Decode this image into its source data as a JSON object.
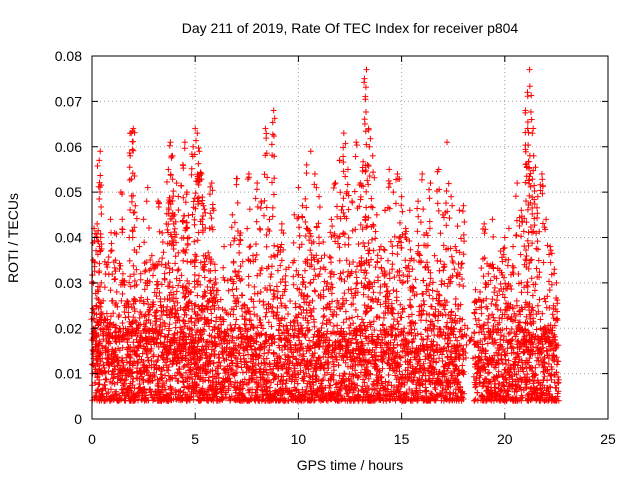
{
  "chart_data": {
    "type": "scatter",
    "title": "Day 211 of 2019, Rate Of TEC Index for receiver p804",
    "xlabel": "GPS time / hours",
    "ylabel": "ROTI / TECUs",
    "xlim": [
      0,
      25
    ],
    "ylim": [
      0,
      0.08
    ],
    "xticks": [
      0,
      5,
      10,
      15,
      20,
      25
    ],
    "xtick_labels": [
      "0",
      "5",
      "10",
      "15",
      "20",
      "25"
    ],
    "yticks": [
      0,
      0.01,
      0.02,
      0.03,
      0.04,
      0.05,
      0.06,
      0.07,
      0.08
    ],
    "ytick_labels": [
      "0",
      "0.01",
      "0.02",
      "0.03",
      "0.04",
      "0.05",
      "0.06",
      "0.07",
      "0.08"
    ],
    "grid": true,
    "marker": "plus",
    "color": "#ff0000",
    "series": [
      {
        "name": "ROTI",
        "points": [
          [
            0.0,
            0.012
          ],
          [
            0.05,
            0.035
          ],
          [
            0.1,
            0.042
          ],
          [
            0.15,
            0.008
          ],
          [
            0.2,
            0.025
          ],
          [
            0.25,
            0.043
          ],
          [
            0.3,
            0.015
          ],
          [
            0.35,
            0.057
          ],
          [
            0.4,
            0.059
          ],
          [
            0.45,
            0.03
          ],
          [
            0.5,
            0.01
          ],
          [
            0.6,
            0.022
          ],
          [
            0.7,
            0.034
          ],
          [
            0.8,
            0.012
          ],
          [
            0.9,
            0.044
          ],
          [
            1.0,
            0.018
          ],
          [
            1.1,
            0.041
          ],
          [
            1.2,
            0.028
          ],
          [
            1.3,
            0.009
          ],
          [
            1.4,
            0.05
          ],
          [
            1.5,
            0.032
          ],
          [
            1.6,
            0.011
          ],
          [
            1.7,
            0.026
          ],
          [
            1.8,
            0.04
          ],
          [
            1.9,
            0.063
          ],
          [
            2.0,
            0.064
          ],
          [
            2.1,
            0.047
          ],
          [
            2.2,
            0.02
          ],
          [
            2.3,
            0.038
          ],
          [
            2.4,
            0.013
          ],
          [
            2.5,
            0.044
          ],
          [
            2.6,
            0.03
          ],
          [
            2.7,
            0.051
          ],
          [
            2.8,
            0.024
          ],
          [
            2.9,
            0.036
          ],
          [
            3.0,
            0.012
          ],
          [
            3.1,
            0.034
          ],
          [
            3.2,
            0.048
          ],
          [
            3.3,
            0.022
          ],
          [
            3.4,
            0.041
          ],
          [
            3.5,
            0.016
          ],
          [
            3.6,
            0.043
          ],
          [
            3.7,
            0.055
          ],
          [
            3.8,
            0.061
          ],
          [
            3.9,
            0.058
          ],
          [
            4.0,
            0.045
          ],
          [
            4.1,
            0.052
          ],
          [
            4.2,
            0.033
          ],
          [
            4.3,
            0.019
          ],
          [
            4.4,
            0.056
          ],
          [
            4.5,
            0.061
          ],
          [
            4.6,
            0.05
          ],
          [
            4.7,
            0.04
          ],
          [
            4.8,
            0.028
          ],
          [
            4.9,
            0.06
          ],
          [
            5.0,
            0.064
          ],
          [
            5.1,
            0.063
          ],
          [
            5.2,
            0.059
          ],
          [
            5.3,
            0.054
          ],
          [
            5.4,
            0.047
          ],
          [
            5.5,
            0.036
          ],
          [
            5.6,
            0.026
          ],
          [
            5.7,
            0.042
          ],
          [
            5.8,
            0.052
          ],
          [
            5.9,
            0.046
          ],
          [
            6.0,
            0.03
          ],
          [
            6.2,
            0.022
          ],
          [
            6.4,
            0.038
          ],
          [
            6.6,
            0.014
          ],
          [
            6.8,
            0.045
          ],
          [
            7.0,
            0.053
          ],
          [
            7.2,
            0.041
          ],
          [
            7.4,
            0.025
          ],
          [
            7.6,
            0.054
          ],
          [
            7.8,
            0.036
          ],
          [
            8.0,
            0.052
          ],
          [
            8.2,
            0.048
          ],
          [
            8.4,
            0.064
          ],
          [
            8.6,
            0.044
          ],
          [
            8.8,
            0.068
          ],
          [
            9.0,
            0.038
          ],
          [
            9.2,
            0.043
          ],
          [
            9.4,
            0.033
          ],
          [
            9.6,
            0.026
          ],
          [
            9.8,
            0.045
          ],
          [
            10.0,
            0.051
          ],
          [
            10.2,
            0.047
          ],
          [
            10.4,
            0.056
          ],
          [
            10.6,
            0.059
          ],
          [
            10.8,
            0.054
          ],
          [
            11.0,
            0.049
          ],
          [
            11.2,
            0.039
          ],
          [
            11.4,
            0.03
          ],
          [
            11.6,
            0.044
          ],
          [
            11.8,
            0.052
          ],
          [
            12.0,
            0.057
          ],
          [
            12.2,
            0.063
          ],
          [
            12.4,
            0.055
          ],
          [
            12.6,
            0.048
          ],
          [
            12.8,
            0.061
          ],
          [
            13.0,
            0.052
          ],
          [
            13.2,
            0.075
          ],
          [
            13.3,
            0.077
          ],
          [
            13.4,
            0.064
          ],
          [
            13.6,
            0.058
          ],
          [
            13.8,
            0.045
          ],
          [
            14.0,
            0.038
          ],
          [
            14.2,
            0.046
          ],
          [
            14.4,
            0.055
          ],
          [
            14.6,
            0.05
          ],
          [
            14.8,
            0.054
          ],
          [
            15.0,
            0.049
          ],
          [
            15.2,
            0.042
          ],
          [
            15.4,
            0.046
          ],
          [
            15.6,
            0.035
          ],
          [
            15.8,
            0.048
          ],
          [
            16.0,
            0.054
          ],
          [
            16.2,
            0.041
          ],
          [
            16.4,
            0.052
          ],
          [
            16.6,
            0.036
          ],
          [
            16.8,
            0.055
          ],
          [
            17.0,
            0.045
          ],
          [
            17.2,
            0.061
          ],
          [
            17.4,
            0.049
          ],
          [
            17.6,
            0.038
          ],
          [
            17.8,
            0.046
          ],
          [
            18.0,
            0.047
          ],
          [
            18.2,
            0.02
          ],
          [
            18.4,
            0.018
          ],
          [
            18.6,
            0.026
          ],
          [
            18.8,
            0.028
          ],
          [
            19.0,
            0.043
          ],
          [
            19.2,
            0.032
          ],
          [
            19.4,
            0.044
          ],
          [
            19.6,
            0.031
          ],
          [
            19.8,
            0.037
          ],
          [
            20.0,
            0.04
          ],
          [
            20.2,
            0.042
          ],
          [
            20.4,
            0.038
          ],
          [
            20.6,
            0.052
          ],
          [
            20.8,
            0.046
          ],
          [
            21.0,
            0.068
          ],
          [
            21.1,
            0.072
          ],
          [
            21.2,
            0.077
          ],
          [
            21.3,
            0.066
          ],
          [
            21.4,
            0.058
          ],
          [
            21.6,
            0.049
          ],
          [
            21.8,
            0.054
          ],
          [
            22.0,
            0.044
          ],
          [
            22.2,
            0.038
          ],
          [
            22.4,
            0.033
          ],
          [
            22.5,
            0.03
          ]
        ]
      }
    ],
    "description_floor": {
      "note": "dense baseline band of points between 0.004 and 0.02 across all observed hours, with a data gap near 18.1-18.5 h",
      "segments": [
        [
          0.0,
          18.0
        ],
        [
          18.5,
          22.6
        ]
      ],
      "band": [
        0.004,
        0.02
      ]
    }
  }
}
